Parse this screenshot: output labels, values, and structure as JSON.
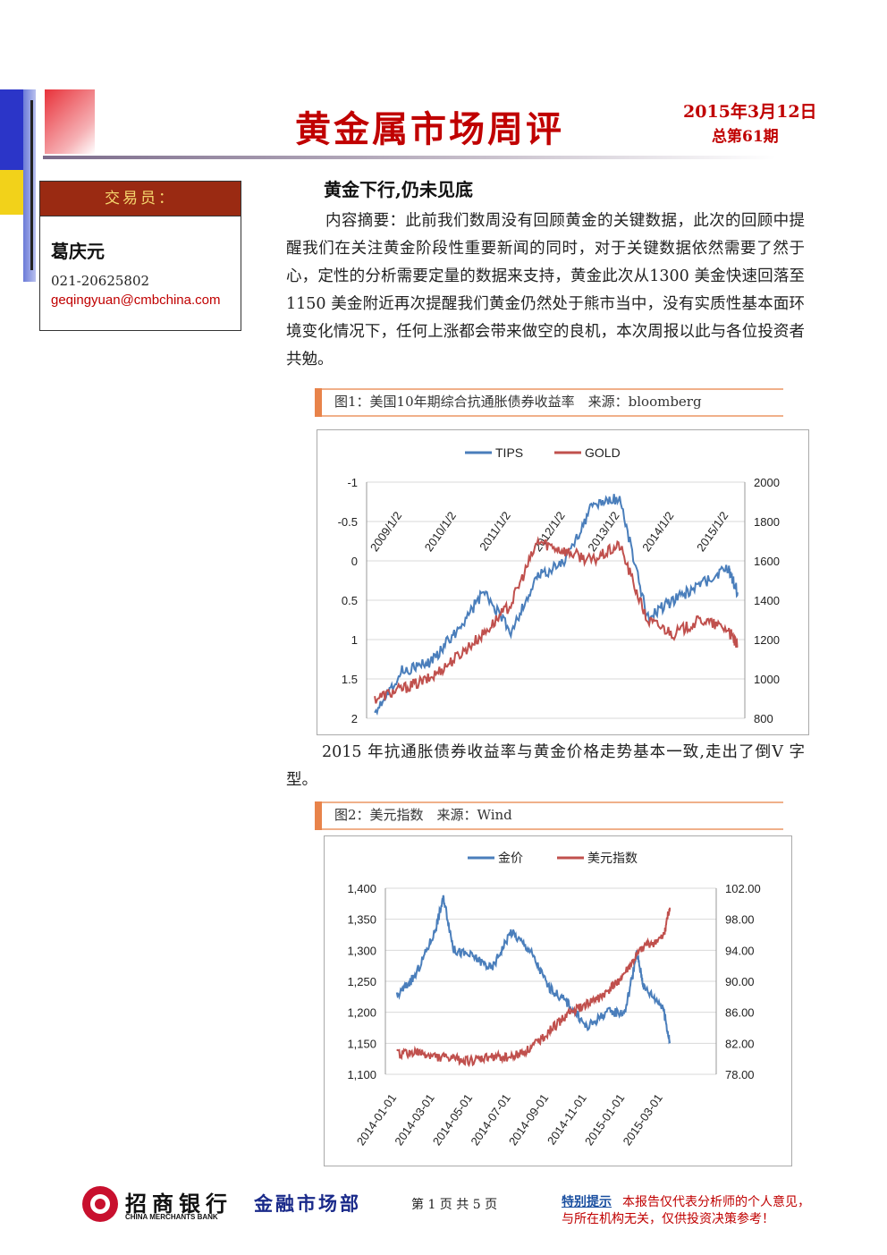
{
  "header": {
    "title": "黄金属市场周评",
    "date": "2015年3月12日",
    "issue": "总第61期"
  },
  "trader": {
    "label": "交易员：",
    "name": "葛庆元",
    "phone": "021-20625802",
    "email": "geqingyuan@cmbchina.com"
  },
  "article": {
    "headline": "黄金下行,仍未见底",
    "abstract": "内容摘要：此前我们数周没有回顾黄金的关键数据，此次的回顾中提醒我们在关注黄金阶段性重要新闻的同时，对于关键数据依然需要了然于心，定性的分析需要定量的数据来支持，黄金此次从1300 美金快速回落至 1150 美金附近再次提醒我们黄金仍然处于熊市当中，没有实质性基本面环境变化情况下，任何上涨都会带来做空的良机，本次周报以此与各位投资者共勉。",
    "para2": "2015 年抗通胀债券收益率与黄金价格走势基本一致,走出了倒V 字型。"
  },
  "figure1": {
    "caption": "图1：美国10年期综合抗通胀债券收益率　来源：bloomberg"
  },
  "figure2": {
    "caption": "图2：美元指数　来源：Wind"
  },
  "chart_data": [
    {
      "type": "line",
      "series": [
        {
          "name": "TIPS",
          "color": "#4a7ebb",
          "axis": "left-inverted",
          "x": [
            "2008/07",
            "2009/01",
            "2009/07",
            "2010/01",
            "2010/07",
            "2011/01",
            "2011/07",
            "2012/01",
            "2012/07",
            "2013/01",
            "2013/07",
            "2014/01",
            "2014/07",
            "2015/01",
            "2015/03"
          ],
          "values": [
            1.9,
            1.4,
            1.3,
            0.9,
            0.4,
            0.9,
            0.2,
            0.0,
            -0.7,
            -0.8,
            0.7,
            0.5,
            0.3,
            0.1,
            0.4
          ]
        },
        {
          "name": "GOLD",
          "color": "#c0504d",
          "axis": "right",
          "x": [
            "2008/07",
            "2009/01",
            "2009/07",
            "2010/01",
            "2010/07",
            "2011/01",
            "2011/07",
            "2012/01",
            "2012/07",
            "2013/01",
            "2013/07",
            "2014/01",
            "2014/07",
            "2015/01",
            "2015/03"
          ],
          "values": [
            900,
            950,
            1000,
            1110,
            1230,
            1380,
            1700,
            1650,
            1600,
            1680,
            1300,
            1230,
            1300,
            1250,
            1160
          ]
        }
      ],
      "left_ticks": [
        "-1",
        "-0.5",
        "0",
        "0.5",
        "1",
        "1.5",
        "2"
      ],
      "right_ticks": [
        "2000",
        "1800",
        "1600",
        "1400",
        "1200",
        "1000",
        "800"
      ],
      "x_ticks": [
        "2009/1/2",
        "2010/1/2",
        "2011/1/2",
        "2012/1/2",
        "2013/1/2",
        "2014/1/2",
        "2015/1/2"
      ],
      "ylim_left": [
        2,
        -1
      ],
      "ylim_right": [
        800,
        2000
      ],
      "grid": true,
      "legend": "top"
    },
    {
      "type": "line",
      "series": [
        {
          "name": "金价",
          "color": "#4a7ebb",
          "axis": "left",
          "x": [
            "2014-01-01",
            "2014-02-01",
            "2014-03-01",
            "2014-03-15",
            "2014-04-01",
            "2014-05-01",
            "2014-06-01",
            "2014-07-01",
            "2014-08-01",
            "2014-09-01",
            "2014-10-01",
            "2014-11-01",
            "2014-12-01",
            "2015-01-01",
            "2015-01-20",
            "2015-02-01",
            "2015-03-01",
            "2015-03-12"
          ],
          "values": [
            1225,
            1260,
            1330,
            1385,
            1300,
            1290,
            1270,
            1330,
            1300,
            1240,
            1215,
            1175,
            1200,
            1200,
            1295,
            1240,
            1210,
            1150
          ]
        },
        {
          "name": "美元指数",
          "color": "#c0504d",
          "axis": "right",
          "x": [
            "2014-01-01",
            "2014-02-01",
            "2014-03-01",
            "2014-04-01",
            "2014-05-01",
            "2014-06-01",
            "2014-07-01",
            "2014-08-01",
            "2014-09-01",
            "2014-10-01",
            "2014-11-01",
            "2014-12-01",
            "2015-01-01",
            "2015-02-01",
            "2015-03-01",
            "2015-03-12"
          ],
          "values": [
            80.6,
            80.8,
            80.3,
            80.0,
            79.7,
            80.3,
            80.2,
            81.3,
            83.5,
            85.8,
            87.0,
            88.4,
            91.0,
            94.5,
            95.5,
            99.5
          ]
        }
      ],
      "left_ticks": [
        "1,400",
        "1,350",
        "1,300",
        "1,250",
        "1,200",
        "1,150",
        "1,100"
      ],
      "right_ticks": [
        "102.00",
        "98.00",
        "94.00",
        "90.00",
        "86.00",
        "82.00",
        "78.00"
      ],
      "x_ticks": [
        "2014-01-01",
        "2014-03-01",
        "2014-05-01",
        "2014-07-01",
        "2014-09-01",
        "2014-11-01",
        "2015-01-01",
        "2015-03-01"
      ],
      "ylim_left": [
        1100,
        1400
      ],
      "ylim_right": [
        78,
        102
      ],
      "grid": true,
      "legend": "top"
    }
  ],
  "footer": {
    "bank": "招商银行",
    "bank_en": "CHINA MERCHANTS BANK",
    "dept": "金融市场部",
    "page": "第 1 页 共 5 页",
    "notice_label": "特别提示",
    "notice_text": "本报告仅代表分析师的个人意见，",
    "notice_text2": "与所在机构无关，仅供投资决策参考！"
  }
}
